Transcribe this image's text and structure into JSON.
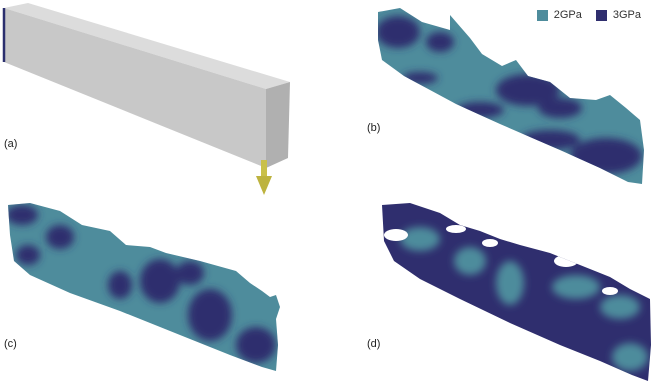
{
  "legend": {
    "items": [
      {
        "label": "2GPa",
        "color": "#4e8c9c"
      },
      {
        "label": "3GPa",
        "color": "#2f2e6e"
      }
    ]
  },
  "panels": {
    "a": {
      "label": "(a)"
    },
    "b": {
      "label": "(b)"
    },
    "c": {
      "label": "(c)"
    },
    "d": {
      "label": "(d)"
    }
  },
  "colors": {
    "beam_top": "#d9d9d9",
    "beam_front": "#c6c6c6",
    "beam_end": "#b2b2b2",
    "beam_edge": "#2b2f6e",
    "load_arrow": "#c9c04a",
    "soft_phase": "#4e8c9c",
    "stiff_phase": "#2f2e6e"
  },
  "icons": {
    "load_arrow": "downward-arrow"
  }
}
